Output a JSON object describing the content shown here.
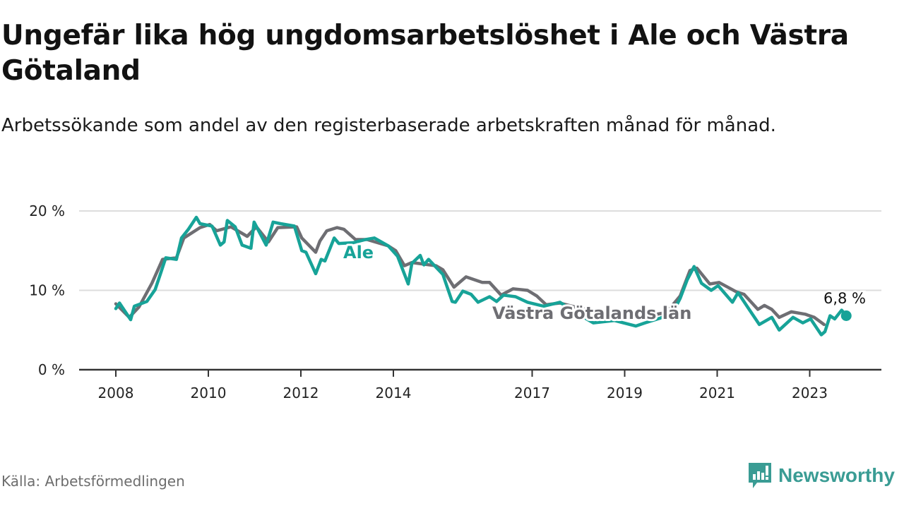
{
  "title": "Ungefär lika hög ungdomsarbetslöshet i Ale och Västra Götaland",
  "subtitle": "Arbetssökande som andel av den registerbaserade arbetskraften månad för månad.",
  "source": "Källa: Arbetsförmedlingen",
  "brand": "Newsworthy",
  "colors": {
    "ale": "#17a398",
    "vg": "#6e6e73",
    "grid": "#dddddd",
    "axis": "#333333",
    "brand": "#3a9c94"
  },
  "chart_data": {
    "type": "line",
    "title": "Ungefär lika hög ungdomsarbetslöshet i Ale och Västra Götaland",
    "xlabel": "",
    "ylabel": "",
    "xlim": [
      2007.25,
      2024.6
    ],
    "ylim": [
      0,
      20
    ],
    "grid": true,
    "x_ticks": [
      2008,
      2010,
      2012,
      2014,
      2017,
      2019,
      2021,
      2023
    ],
    "x_tick_labels": [
      "2008",
      "2010",
      "2012",
      "2014",
      "2017",
      "2019",
      "2021",
      "2023"
    ],
    "y_ticks": [
      0,
      10,
      20
    ],
    "y_tick_labels": [
      "0 %",
      "10 %",
      "20 %"
    ],
    "end_label": "6,8 %",
    "series": [
      {
        "name": "Västra Götalands län",
        "key": "vg",
        "points": [
          [
            2008.0,
            8.3
          ],
          [
            2008.29,
            6.6
          ],
          [
            2008.5,
            7.9
          ],
          [
            2008.78,
            10.9
          ],
          [
            2009.01,
            13.9
          ],
          [
            2009.31,
            14.1
          ],
          [
            2009.47,
            16.6
          ],
          [
            2009.82,
            17.9
          ],
          [
            2010.03,
            18.3
          ],
          [
            2010.18,
            17.5
          ],
          [
            2010.49,
            18.0
          ],
          [
            2010.84,
            16.8
          ],
          [
            2011.04,
            18.0
          ],
          [
            2011.3,
            16.1
          ],
          [
            2011.5,
            17.9
          ],
          [
            2011.91,
            18.0
          ],
          [
            2012.02,
            16.6
          ],
          [
            2012.32,
            14.8
          ],
          [
            2012.41,
            16.2
          ],
          [
            2012.56,
            17.5
          ],
          [
            2012.78,
            17.9
          ],
          [
            2012.93,
            17.7
          ],
          [
            2013.18,
            16.4
          ],
          [
            2013.43,
            16.4
          ],
          [
            2013.89,
            15.6
          ],
          [
            2014.05,
            15.0
          ],
          [
            2014.24,
            13.1
          ],
          [
            2014.4,
            13.5
          ],
          [
            2014.92,
            13.1
          ],
          [
            2015.07,
            12.6
          ],
          [
            2015.31,
            10.4
          ],
          [
            2015.57,
            11.7
          ],
          [
            2015.92,
            11.0
          ],
          [
            2016.08,
            11.0
          ],
          [
            2016.33,
            9.4
          ],
          [
            2016.59,
            10.2
          ],
          [
            2016.9,
            10.0
          ],
          [
            2017.1,
            9.3
          ],
          [
            2017.3,
            8.2
          ],
          [
            2017.6,
            8.4
          ],
          [
            2018.0,
            7.8
          ],
          [
            2018.5,
            7.2
          ],
          [
            2019.0,
            7.0
          ],
          [
            2019.5,
            6.8
          ],
          [
            2019.9,
            7.2
          ],
          [
            2020.2,
            9.3
          ],
          [
            2020.41,
            12.5
          ],
          [
            2020.56,
            12.8
          ],
          [
            2020.84,
            10.8
          ],
          [
            2021.04,
            11.0
          ],
          [
            2021.42,
            9.8
          ],
          [
            2021.58,
            9.5
          ],
          [
            2021.88,
            7.6
          ],
          [
            2022.02,
            8.1
          ],
          [
            2022.18,
            7.6
          ],
          [
            2022.34,
            6.6
          ],
          [
            2022.6,
            7.3
          ],
          [
            2022.9,
            7.0
          ],
          [
            2023.1,
            6.6
          ],
          [
            2023.31,
            5.7
          ]
        ]
      },
      {
        "name": "Ale",
        "key": "ale",
        "points": [
          [
            2008.0,
            7.7
          ],
          [
            2008.08,
            8.4
          ],
          [
            2008.32,
            6.3
          ],
          [
            2008.4,
            8.0
          ],
          [
            2008.67,
            8.6
          ],
          [
            2008.85,
            10.1
          ],
          [
            2008.96,
            12.0
          ],
          [
            2009.08,
            14.1
          ],
          [
            2009.31,
            13.9
          ],
          [
            2009.42,
            16.6
          ],
          [
            2009.57,
            17.7
          ],
          [
            2009.74,
            19.2
          ],
          [
            2009.82,
            18.4
          ],
          [
            2010.08,
            18.1
          ],
          [
            2010.26,
            15.7
          ],
          [
            2010.34,
            16.1
          ],
          [
            2010.41,
            18.8
          ],
          [
            2010.58,
            18.0
          ],
          [
            2010.73,
            15.7
          ],
          [
            2010.92,
            15.3
          ],
          [
            2010.99,
            18.6
          ],
          [
            2011.25,
            15.7
          ],
          [
            2011.4,
            18.6
          ],
          [
            2011.56,
            18.4
          ],
          [
            2011.86,
            18.1
          ],
          [
            2012.02,
            15.0
          ],
          [
            2012.11,
            14.8
          ],
          [
            2012.32,
            12.1
          ],
          [
            2012.44,
            13.9
          ],
          [
            2012.52,
            13.7
          ],
          [
            2012.72,
            16.6
          ],
          [
            2012.82,
            15.9
          ],
          [
            2013.13,
            16.0
          ],
          [
            2013.4,
            16.4
          ],
          [
            2013.59,
            16.6
          ],
          [
            2013.89,
            15.6
          ],
          [
            2014.09,
            14.3
          ],
          [
            2014.32,
            10.8
          ],
          [
            2014.4,
            13.4
          ],
          [
            2014.58,
            14.4
          ],
          [
            2014.66,
            13.2
          ],
          [
            2014.76,
            13.9
          ],
          [
            2015.07,
            12.0
          ],
          [
            2015.27,
            8.6
          ],
          [
            2015.34,
            8.5
          ],
          [
            2015.5,
            9.9
          ],
          [
            2015.68,
            9.5
          ],
          [
            2015.83,
            8.5
          ],
          [
            2016.08,
            9.2
          ],
          [
            2016.23,
            8.6
          ],
          [
            2016.38,
            9.4
          ],
          [
            2016.64,
            9.2
          ],
          [
            2016.9,
            8.5
          ],
          [
            2017.25,
            8.0
          ],
          [
            2017.6,
            8.5
          ],
          [
            2017.94,
            7.2
          ],
          [
            2018.32,
            5.9
          ],
          [
            2018.78,
            6.2
          ],
          [
            2019.24,
            5.5
          ],
          [
            2019.44,
            5.9
          ],
          [
            2019.77,
            6.5
          ],
          [
            2020.05,
            7.3
          ],
          [
            2020.2,
            9.0
          ],
          [
            2020.35,
            11.3
          ],
          [
            2020.5,
            13.0
          ],
          [
            2020.66,
            10.9
          ],
          [
            2020.87,
            10.0
          ],
          [
            2021.02,
            10.6
          ],
          [
            2021.33,
            8.5
          ],
          [
            2021.45,
            9.7
          ],
          [
            2021.68,
            7.7
          ],
          [
            2021.91,
            5.7
          ],
          [
            2022.18,
            6.6
          ],
          [
            2022.34,
            5.0
          ],
          [
            2022.64,
            6.6
          ],
          [
            2022.85,
            5.9
          ],
          [
            2023.02,
            6.4
          ],
          [
            2023.25,
            4.4
          ],
          [
            2023.33,
            4.8
          ],
          [
            2023.44,
            6.8
          ],
          [
            2023.54,
            6.4
          ],
          [
            2023.69,
            7.5
          ],
          [
            2023.79,
            6.8
          ]
        ]
      }
    ]
  }
}
